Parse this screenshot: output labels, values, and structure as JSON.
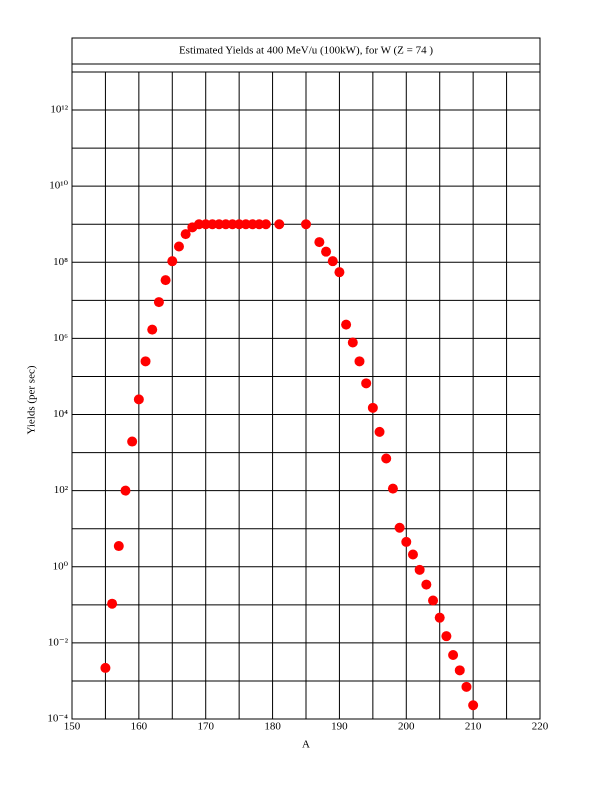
{
  "chart_data": {
    "type": "scatter",
    "title": "Estimated Yields at 400 MeV/u (100kW), for W (Z = 74 )",
    "x_label": "A",
    "y_label": "Yields (per sec)",
    "color": "#ff0000",
    "log_y": true,
    "grid": true,
    "x": [
      155,
      156,
      157,
      158,
      159,
      160,
      161,
      162,
      163,
      164,
      165,
      166,
      167,
      168,
      169,
      170,
      171,
      172,
      173,
      174,
      175,
      176,
      177,
      178,
      179,
      181,
      185,
      187,
      188,
      189,
      190,
      191,
      192,
      193,
      194,
      195,
      196,
      197,
      198,
      199,
      200,
      201,
      202,
      203,
      204,
      205,
      206,
      207,
      208,
      209,
      210
    ],
    "values": [
      0.0022,
      0.107,
      3.5,
      100,
      1950,
      25000,
      250000,
      1700000,
      9000000,
      34000000,
      107000000,
      260000000,
      550000000,
      830000000,
      1000000000,
      1000000000,
      1000000000,
      1000000000,
      1000000000,
      1000000000,
      1000000000,
      1000000000,
      1000000000,
      1000000000,
      1000000000,
      1000000000,
      1000000000,
      340000000,
      190000000,
      107000000,
      55000000,
      2300000,
      780000,
      250000,
      66000,
      15000,
      3500,
      700,
      113,
      10.6,
      4.5,
      2.1,
      0.83,
      0.34,
      0.13,
      0.046,
      0.015,
      0.0048,
      0.0019,
      0.0007,
      0.00023
    ],
    "xlim": [
      150,
      220
    ],
    "xticks": [
      150,
      160,
      170,
      180,
      190,
      200,
      210,
      220
    ],
    "minor_xticks": [
      155,
      165,
      175,
      185,
      195,
      205,
      215
    ],
    "ylim": [
      0.0001,
      10000000000000
    ],
    "yticks": [
      {
        "value": 0.0001,
        "label": "10⁻⁴"
      },
      {
        "value": 0.01,
        "label": "10⁻²"
      },
      {
        "value": 1,
        "label": "10⁰"
      },
      {
        "value": 100,
        "label": "10²"
      },
      {
        "value": 10000,
        "label": "10⁴"
      },
      {
        "value": 1000000,
        "label": "10⁶"
      },
      {
        "value": 100000000,
        "label": "10⁸"
      },
      {
        "value": 10000000000,
        "label": "10¹⁰"
      },
      {
        "value": 1000000000000,
        "label": "10¹²"
      }
    ],
    "minor_yticks": [
      0.001,
      0.1,
      10,
      1000,
      100000,
      10000000,
      1000000000,
      100000000000
    ]
  }
}
